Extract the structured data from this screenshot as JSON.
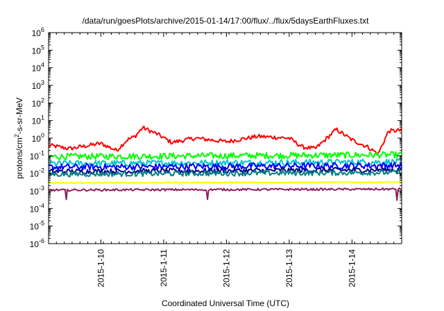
{
  "chart_data": {
    "type": "line",
    "title": "/data/run/goesPlots/archive/2015-01-14/17:00/flux/../flux/5daysEarthFluxes.txt",
    "xlabel": "Coordinated Universal Time (UTC)",
    "ylabel": {
      "base": "protons/cm",
      "sup": "2",
      "rest": "-s-sr-MeV"
    },
    "yscale": "log",
    "ylim_exponents": [
      -6,
      6
    ],
    "y_ticks": [
      {
        "base": "10",
        "exp": "-6"
      },
      {
        "base": "10",
        "exp": "-5"
      },
      {
        "base": "10",
        "exp": "-4"
      },
      {
        "base": "10",
        "exp": "-3"
      },
      {
        "base": "10",
        "exp": "-2"
      },
      {
        "base": "10",
        "exp": "-1"
      },
      {
        "base": "10",
        "exp": "0"
      },
      {
        "base": "10",
        "exp": "1"
      },
      {
        "base": "10",
        "exp": "2"
      },
      {
        "base": "10",
        "exp": "3"
      },
      {
        "base": "10",
        "exp": "4"
      },
      {
        "base": "10",
        "exp": "5"
      },
      {
        "base": "10",
        "exp": "6"
      }
    ],
    "x_range_days": [
      "2015-01-09 04:00",
      "2015-01-14 19:00"
    ],
    "x_ticks": [
      "2015-1-10",
      "2015-1-11",
      "2015-1-12",
      "2015-1-13",
      "2015-1-14"
    ],
    "grid": false,
    "legend": "none",
    "series": [
      {
        "color": "#ff0000",
        "x": [
          "2015-01-09 04:00",
          "2015-01-09 12:00",
          "2015-01-10 00:00",
          "2015-01-10 06:00",
          "2015-01-10 10:00",
          "2015-01-10 13:00",
          "2015-01-10 16:00",
          "2015-01-10 22:00",
          "2015-01-11 03:00",
          "2015-01-11 12:00",
          "2015-01-12 00:00",
          "2015-01-12 12:00",
          "2015-01-13 00:00",
          "2015-01-13 05:00",
          "2015-01-13 10:00",
          "2015-01-13 13:00",
          "2015-01-13 18:00",
          "2015-01-14 00:00",
          "2015-01-14 06:00",
          "2015-01-14 10:00",
          "2015-01-14 14:00",
          "2015-01-14 19:00"
        ],
        "log10": [
          -0.4,
          -0.6,
          -0.3,
          -0.7,
          -0.1,
          0.1,
          0.6,
          0.2,
          -0.25,
          0.0,
          -0.2,
          0.1,
          0.0,
          -0.5,
          -0.6,
          -0.2,
          0.5,
          -0.1,
          -0.5,
          -0.9,
          0.4,
          0.45
        ]
      },
      {
        "color": "#00ff00",
        "x": [
          "2015-01-09 04:00",
          "2015-01-14 19:00"
        ],
        "log10": [
          -1.05,
          -0.95
        ],
        "noise": 0.18
      },
      {
        "color": "#00c8c8",
        "x": [
          "2015-01-09 04:00",
          "2015-01-14 19:00"
        ],
        "log10": [
          -1.45,
          -1.35
        ],
        "noise": 0.18
      },
      {
        "color": "#0000ff",
        "x": [
          "2015-01-09 04:00",
          "2015-01-14 19:00"
        ],
        "log10": [
          -1.65,
          -1.55
        ],
        "noise": 0.18
      },
      {
        "color": "#00008b",
        "x": [
          "2015-01-09 04:00",
          "2015-01-14 19:00"
        ],
        "log10": [
          -1.9,
          -1.8
        ],
        "noise": 0.15
      },
      {
        "color": "#008080",
        "x": [
          "2015-01-09 04:00",
          "2015-01-14 19:00"
        ],
        "log10": [
          -2.05,
          -1.95
        ],
        "noise": 0.15
      },
      {
        "color": "#ffff00",
        "x": [
          "2015-01-09 04:00",
          "2015-01-14 19:00"
        ],
        "log10": [
          -2.55,
          -2.5
        ],
        "noise": 0.03
      },
      {
        "color": "#8b1f5a",
        "x": [
          "2015-01-09 04:00",
          "2015-01-14 19:00"
        ],
        "log10": [
          -2.95,
          -2.9
        ],
        "noise": 0.06
      }
    ]
  }
}
